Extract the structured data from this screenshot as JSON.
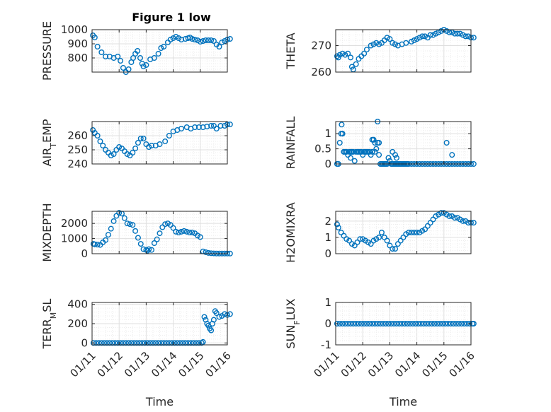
{
  "figure_title": "Figure 1 low",
  "marker_color": "#0072bd",
  "chart_data": [
    {
      "type": "scatter",
      "title": "Figure 1 low",
      "xlabel": "",
      "ylabel": "PRESSURE",
      "xlim": [
        0,
        5
      ],
      "ylim": [
        700,
        1000
      ],
      "yticks": [
        800,
        900,
        1000
      ],
      "xtick_labels_shown": false,
      "x": [
        0.03,
        0.1,
        0.2,
        0.35,
        0.5,
        0.65,
        0.8,
        0.95,
        1.05,
        1.15,
        1.25,
        1.35,
        1.45,
        1.52,
        1.6,
        1.68,
        1.78,
        1.85,
        1.9,
        2.0,
        2.15,
        2.3,
        2.45,
        2.55,
        2.65,
        2.8,
        2.9,
        3.0,
        3.1,
        3.2,
        3.3,
        3.45,
        3.55,
        3.62,
        3.7,
        3.8,
        3.9,
        4.0,
        4.1,
        4.2,
        4.3,
        4.4,
        4.5,
        4.6,
        4.7,
        4.8,
        4.9,
        5.0,
        5.1
      ],
      "y": [
        960,
        945,
        880,
        840,
        810,
        810,
        800,
        810,
        780,
        730,
        700,
        720,
        770,
        800,
        830,
        850,
        800,
        760,
        740,
        750,
        790,
        800,
        830,
        870,
        880,
        910,
        930,
        940,
        950,
        940,
        930,
        935,
        940,
        945,
        935,
        930,
        925,
        915,
        920,
        925,
        925,
        925,
        920,
        895,
        880,
        910,
        920,
        930,
        935
      ]
    },
    {
      "type": "scatter",
      "xlabel": "",
      "ylabel": "THETA",
      "xlim": [
        0,
        5
      ],
      "ylim": [
        260,
        276
      ],
      "yticks": [
        260,
        270
      ],
      "xtick_labels_shown": false,
      "x": [
        0.05,
        0.1,
        0.15,
        0.25,
        0.35,
        0.45,
        0.55,
        0.6,
        0.65,
        0.75,
        0.85,
        0.95,
        1.05,
        1.15,
        1.3,
        1.4,
        1.5,
        1.6,
        1.7,
        1.8,
        1.9,
        2.0,
        2.1,
        2.2,
        2.3,
        2.45,
        2.6,
        2.8,
        2.9,
        3.0,
        3.1,
        3.2,
        3.3,
        3.4,
        3.5,
        3.6,
        3.7,
        3.8,
        3.9,
        4.0,
        4.1,
        4.2,
        4.3,
        4.4,
        4.5,
        4.6,
        4.7,
        4.8,
        4.9,
        5.0,
        5.1
      ],
      "y": [
        266,
        265.5,
        266.5,
        267,
        266.5,
        267,
        265.5,
        262,
        261,
        263,
        265,
        266,
        267,
        268.5,
        270,
        270.5,
        271,
        270.5,
        271,
        272,
        273,
        272.5,
        271,
        270.5,
        270,
        270.5,
        271,
        271.5,
        272,
        272.5,
        273,
        273.5,
        273.5,
        273,
        274,
        274,
        274.5,
        275,
        275.5,
        276,
        275.5,
        275,
        275,
        274.5,
        274.5,
        274.5,
        274,
        273.5,
        273.5,
        273,
        273
      ]
    },
    {
      "type": "scatter",
      "xlabel": "",
      "ylabel": "AIR_TEMP",
      "xlim": [
        0,
        5
      ],
      "ylim": [
        240,
        270
      ],
      "yticks": [
        240,
        250,
        260
      ],
      "xtick_labels_shown": false,
      "x": [
        0.03,
        0.1,
        0.2,
        0.3,
        0.4,
        0.5,
        0.6,
        0.7,
        0.8,
        0.9,
        1.0,
        1.1,
        1.2,
        1.3,
        1.4,
        1.5,
        1.6,
        1.7,
        1.8,
        1.9,
        2.0,
        2.1,
        2.2,
        2.35,
        2.5,
        2.7,
        2.85,
        3.0,
        3.15,
        3.3,
        3.5,
        3.65,
        3.8,
        3.95,
        4.1,
        4.25,
        4.4,
        4.5,
        4.6,
        4.75,
        4.9,
        5.0,
        5.1
      ],
      "y": [
        264,
        262,
        260,
        256,
        253,
        250,
        248,
        246,
        247,
        250,
        252,
        251,
        249,
        247,
        246,
        248,
        251,
        255,
        258,
        258,
        254,
        252,
        253,
        253,
        254,
        256,
        260,
        263,
        264,
        265,
        266,
        265,
        266,
        266,
        266,
        266.5,
        267,
        267,
        265,
        267,
        267,
        268,
        268
      ]
    },
    {
      "type": "scatter",
      "xlabel": "",
      "ylabel": "RAINFALL",
      "xlim": [
        0,
        5
      ],
      "ylim": [
        0,
        1.4
      ],
      "yticks": [
        0,
        0.5,
        1
      ],
      "xtick_labels_shown": false,
      "x": [
        0.05,
        0.1,
        0.15,
        0.2,
        0.25,
        0.3,
        0.35,
        0.4,
        0.45,
        0.5,
        0.55,
        0.6,
        0.65,
        0.7,
        0.75,
        0.8,
        0.85,
        0.9,
        0.95,
        1.0,
        1.05,
        1.1,
        1.15,
        1.2,
        1.25,
        1.3,
        1.35,
        1.4,
        1.45,
        1.5,
        1.55,
        1.6,
        1.65,
        1.7,
        1.75,
        1.8,
        1.85,
        1.9,
        1.95,
        2.0,
        2.05,
        2.1,
        2.15,
        2.2,
        2.25,
        2.3,
        2.35,
        2.4,
        2.45,
        2.5,
        2.55,
        2.6,
        2.65,
        2.7,
        2.8,
        2.9,
        3.0,
        3.1,
        3.2,
        3.3,
        3.4,
        3.5,
        3.6,
        3.7,
        3.8,
        3.9,
        4.0,
        4.1,
        4.2,
        4.3,
        4.4,
        4.5,
        4.6,
        4.7,
        4.8,
        4.9,
        5.0,
        5.1,
        0.22,
        0.25,
        0.3,
        0.55,
        0.6,
        1.35,
        1.4,
        1.45,
        1.55,
        1.6,
        2.1,
        2.2,
        2.25,
        4.1,
        4.3
      ],
      "y": [
        0,
        0,
        0.7,
        1.0,
        1.0,
        0.4,
        0.4,
        0.4,
        0.3,
        0.4,
        0.4,
        0.4,
        0.4,
        0.1,
        0.4,
        0.4,
        0.4,
        0.4,
        0.4,
        0.3,
        0.4,
        0.4,
        0.4,
        0.4,
        0.4,
        0.3,
        0.4,
        0.8,
        0.4,
        0.5,
        0.7,
        0.3,
        0,
        0,
        0,
        0,
        0,
        0,
        0.2,
        0.1,
        0,
        0,
        0,
        0,
        0,
        0,
        0,
        0,
        0,
        0,
        0,
        0,
        0,
        0,
        0,
        0,
        0,
        0,
        0,
        0,
        0,
        0,
        0,
        0,
        0,
        0,
        0,
        0,
        0,
        0,
        0,
        0,
        0,
        0,
        0,
        0,
        0,
        0,
        1.3,
        1.0,
        0.4,
        0.2,
        0.4,
        0.8,
        0.8,
        0.7,
        1.4,
        0.7,
        0.4,
        0.3,
        0.2,
        0.7,
        0.3
      ]
    },
    {
      "type": "scatter",
      "xlabel": "",
      "ylabel": "MIXDEPTH",
      "xlim": [
        0,
        5
      ],
      "ylim": [
        0,
        2800
      ],
      "yticks": [
        0,
        1000,
        2000
      ],
      "xtick_labels_shown": false,
      "x": [
        0.05,
        0.1,
        0.2,
        0.3,
        0.4,
        0.5,
        0.6,
        0.7,
        0.8,
        0.9,
        1.0,
        1.1,
        1.2,
        1.3,
        1.4,
        1.5,
        1.6,
        1.7,
        1.8,
        1.9,
        2.0,
        2.05,
        2.1,
        2.2,
        2.3,
        2.4,
        2.5,
        2.6,
        2.7,
        2.8,
        2.9,
        3.0,
        3.1,
        3.2,
        3.3,
        3.4,
        3.5,
        3.6,
        3.7,
        3.8,
        3.9,
        4.0,
        4.1,
        4.2,
        4.3,
        4.4,
        4.5,
        4.6,
        4.7,
        4.8,
        4.9,
        5.0,
        5.1
      ],
      "y": [
        650,
        620,
        600,
        580,
        750,
        900,
        1250,
        1650,
        2150,
        2500,
        2700,
        2650,
        2350,
        2000,
        1950,
        1900,
        1500,
        1050,
        650,
        300,
        250,
        200,
        300,
        250,
        700,
        950,
        1350,
        1750,
        1950,
        2000,
        1900,
        1700,
        1450,
        1400,
        1450,
        1500,
        1450,
        1400,
        1400,
        1350,
        1200,
        1100,
        150,
        100,
        50,
        30,
        20,
        10,
        10,
        10,
        10,
        10,
        10
      ]
    },
    {
      "type": "scatter",
      "xlabel": "",
      "ylabel": "H2OMIXRA",
      "xlim": [
        0,
        5
      ],
      "ylim": [
        0,
        2.6
      ],
      "yticks": [
        0,
        1,
        2
      ],
      "xtick_labels_shown": false,
      "x": [
        0.05,
        0.1,
        0.2,
        0.3,
        0.4,
        0.5,
        0.6,
        0.7,
        0.8,
        0.9,
        1.0,
        1.1,
        1.2,
        1.3,
        1.4,
        1.5,
        1.6,
        1.7,
        1.8,
        1.9,
        2.0,
        2.1,
        2.2,
        2.3,
        2.4,
        2.5,
        2.6,
        2.7,
        2.8,
        2.9,
        3.0,
        3.1,
        3.2,
        3.3,
        3.4,
        3.5,
        3.6,
        3.7,
        3.8,
        3.9,
        4.0,
        4.1,
        4.2,
        4.3,
        4.4,
        4.5,
        4.6,
        4.7,
        4.8,
        4.9,
        5.0,
        5.1
      ],
      "y": [
        1.8,
        1.6,
        1.3,
        1.1,
        0.9,
        0.8,
        0.6,
        0.5,
        0.7,
        0.9,
        0.9,
        0.8,
        0.7,
        0.6,
        0.8,
        0.9,
        1.0,
        1.3,
        1.0,
        0.8,
        0.5,
        0.3,
        0.3,
        0.6,
        0.8,
        1.0,
        1.2,
        1.3,
        1.3,
        1.3,
        1.3,
        1.3,
        1.4,
        1.5,
        1.7,
        1.9,
        2.1,
        2.3,
        2.4,
        2.5,
        2.5,
        2.4,
        2.3,
        2.3,
        2.2,
        2.2,
        2.1,
        2.0,
        2.0,
        1.9,
        1.9,
        1.9
      ]
    },
    {
      "type": "scatter",
      "xlabel": "Time",
      "ylabel": "TERR_MSL",
      "xlim": [
        0,
        5
      ],
      "ylim": [
        -20,
        420
      ],
      "yticks": [
        0,
        200,
        400
      ],
      "xtick_labels": [
        "01/11",
        "01/12",
        "01/13",
        "01/14",
        "01/15",
        "01/16"
      ],
      "x": [
        0.05,
        0.15,
        0.25,
        0.35,
        0.45,
        0.55,
        0.65,
        0.75,
        0.85,
        0.95,
        1.05,
        1.15,
        1.25,
        1.35,
        1.45,
        1.55,
        1.65,
        1.75,
        1.85,
        1.95,
        2.05,
        2.15,
        2.25,
        2.35,
        2.45,
        2.55,
        2.65,
        2.75,
        2.85,
        2.95,
        3.05,
        3.15,
        3.25,
        3.35,
        3.45,
        3.55,
        3.65,
        3.75,
        3.85,
        3.95,
        4.05,
        4.1,
        4.15,
        4.2,
        4.25,
        4.3,
        4.35,
        4.4,
        4.45,
        4.5,
        4.55,
        4.6,
        4.7,
        4.8,
        4.9,
        5.0,
        5.1
      ],
      "y": [
        0,
        0,
        0,
        0,
        0,
        0,
        0,
        0,
        0,
        0,
        0,
        0,
        0,
        0,
        0,
        0,
        0,
        0,
        0,
        0,
        0,
        0,
        0,
        0,
        0,
        0,
        0,
        0,
        0,
        0,
        0,
        0,
        0,
        0,
        0,
        0,
        0,
        0,
        0,
        0,
        0,
        10,
        270,
        240,
        200,
        180,
        150,
        130,
        200,
        240,
        330,
        310,
        270,
        280,
        300,
        290,
        300
      ]
    },
    {
      "type": "scatter",
      "xlabel": "Time",
      "ylabel": "SUN_FLUX",
      "xlim": [
        0,
        5
      ],
      "ylim": [
        -1,
        1
      ],
      "yticks": [
        -1,
        0,
        1
      ],
      "xtick_labels": [
        "01/11",
        "01/12",
        "01/13",
        "01/14",
        "01/15",
        "01/16"
      ],
      "x": [
        0.05,
        0.15,
        0.25,
        0.35,
        0.45,
        0.55,
        0.65,
        0.75,
        0.85,
        0.95,
        1.05,
        1.15,
        1.25,
        1.35,
        1.45,
        1.55,
        1.65,
        1.75,
        1.85,
        1.95,
        2.05,
        2.15,
        2.25,
        2.35,
        2.45,
        2.55,
        2.65,
        2.75,
        2.85,
        2.95,
        3.05,
        3.15,
        3.25,
        3.35,
        3.45,
        3.55,
        3.65,
        3.75,
        3.85,
        3.95,
        4.05,
        4.15,
        4.25,
        4.35,
        4.45,
        4.55,
        4.65,
        4.75,
        4.85,
        4.95,
        5.05,
        5.1
      ],
      "y": [
        0,
        0,
        0,
        0,
        0,
        0,
        0,
        0,
        0,
        0,
        0,
        0,
        0,
        0,
        0,
        0,
        0,
        0,
        0,
        0,
        0,
        0,
        0,
        0,
        0,
        0,
        0,
        0,
        0,
        0,
        0,
        0,
        0,
        0,
        0,
        0,
        0,
        0,
        0,
        0,
        0,
        0,
        0,
        0,
        0,
        0,
        0,
        0,
        0,
        0,
        0,
        0
      ]
    }
  ]
}
